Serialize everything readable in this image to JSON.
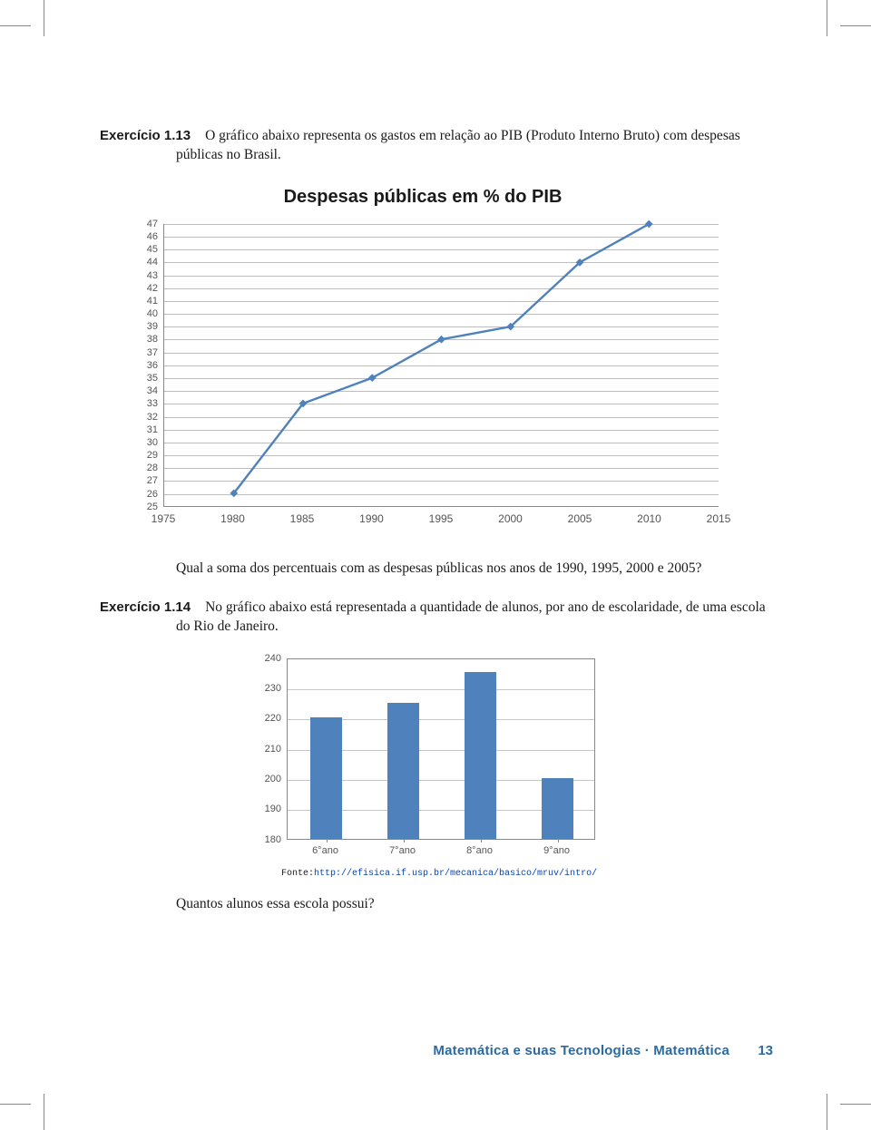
{
  "exercise113": {
    "label": "Exercício 1.13",
    "text": "O gráfico abaixo representa os gastos em relação ao PIB (Produto Interno Bruto) com despesas públicas no Brasil.",
    "question": "Qual a soma dos percentuais com as despesas públicas nos anos de 1990, 1995, 2000 e 2005?"
  },
  "lineChart": {
    "type": "line",
    "title": "Despesas públicas em % do PIB",
    "title_fontsize": 20,
    "x_labels": [
      "1975",
      "1980",
      "1985",
      "1990",
      "1995",
      "2000",
      "2005",
      "2010",
      "2015"
    ],
    "x_values": [
      1975,
      1980,
      1985,
      1990,
      1995,
      2000,
      2005,
      2010,
      2015
    ],
    "data_x": [
      1980,
      1985,
      1990,
      1995,
      2000,
      2005,
      2010
    ],
    "data_y": [
      26,
      33,
      35,
      38,
      39,
      44,
      47
    ],
    "xlim": [
      1975,
      2015
    ],
    "ylim": [
      25,
      47
    ],
    "ytick_step": 1,
    "line_color": "#4f81bd",
    "line_width": 2.4,
    "marker": "diamond",
    "marker_size": 7,
    "marker_color": "#4f81bd",
    "grid_color": "#bdbdbd",
    "axis_color": "#888888",
    "tick_fontsize": 11,
    "tick_color": "#555555",
    "background_color": "#ffffff"
  },
  "exercise114": {
    "label": "Exercício 1.14",
    "text": "No gráfico abaixo está representada a quantidade de alunos, por ano de escolaridade, de uma escola do Rio de Janeiro.",
    "question": "Quantos alunos essa escola possui?"
  },
  "barChart": {
    "type": "bar",
    "categories": [
      "6°ano",
      "7°ano",
      "8°ano",
      "9°ano"
    ],
    "values": [
      220,
      225,
      235,
      200
    ],
    "ylim": [
      180,
      240
    ],
    "ytick_step": 10,
    "y_ticks": [
      180,
      190,
      200,
      210,
      220,
      230,
      240
    ],
    "bar_color": "#4f81bd",
    "bar_width": 0.42,
    "grid_color": "#c6c6c6",
    "axis_color": "#888888",
    "tick_fontsize": 11,
    "tick_color": "#555555",
    "background_color": "#ffffff"
  },
  "source": {
    "label": "Fonte:",
    "url": "http://efisica.if.usp.br/mecanica/basico/mruv/intro/"
  },
  "footer": {
    "text": "Matemática e suas Tecnologias · Matemática",
    "page": "13",
    "color": "#2c6aa0"
  }
}
